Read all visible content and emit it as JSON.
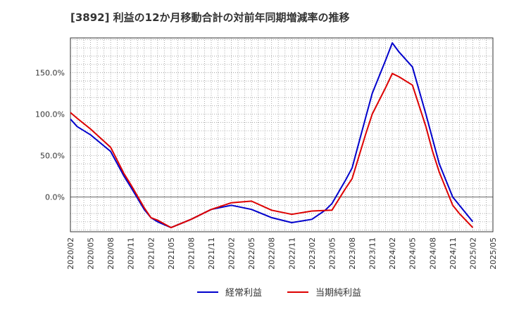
{
  "chart_data": {
    "type": "line",
    "title": "[3892]  利益の12か月移動合計の対前年同期増減率の推移",
    "ylim": [
      -42,
      192
    ],
    "yticks": [
      0,
      50,
      100,
      150
    ],
    "ytick_labels": [
      "0.0%",
      "50.0%",
      "100.0%",
      "150.0%"
    ],
    "x_labels": [
      "2020/02",
      "2020/05",
      "2020/08",
      "2020/11",
      "2021/02",
      "2021/05",
      "2021/08",
      "2021/11",
      "2022/02",
      "2022/05",
      "2022/08",
      "2022/11",
      "2023/02",
      "2023/05",
      "2023/08",
      "2023/11",
      "2024/02",
      "2024/05",
      "2024/08",
      "2024/11",
      "2025/02",
      "2025/05"
    ],
    "x_label_months": [
      0,
      3,
      6,
      9,
      12,
      15,
      18,
      21,
      24,
      27,
      30,
      33,
      36,
      39,
      42,
      45,
      48,
      51,
      54,
      57,
      60,
      63
    ],
    "x_range_months": [
      0,
      63
    ],
    "grid": true,
    "legend_position": "bottom",
    "series": [
      {
        "name": "経常利益",
        "color": "#0000cc",
        "months": [
          0,
          1,
          3,
          6,
          8,
          9,
          11,
          12,
          13,
          15,
          18,
          21,
          24,
          27,
          30,
          33,
          36,
          38,
          39,
          41,
          42,
          44,
          45,
          47,
          48,
          49,
          51,
          53,
          54,
          55,
          57,
          60
        ],
        "values": [
          94,
          85,
          75,
          55,
          25,
          12,
          -15,
          -25,
          -30,
          -37,
          -27,
          -15,
          -10,
          -15,
          -25,
          -31,
          -27,
          -16,
          -8,
          20,
          35,
          95,
          125,
          165,
          186,
          175,
          157,
          100,
          70,
          40,
          0,
          -30
        ]
      },
      {
        "name": "当期純利益",
        "color": "#dd0000",
        "months": [
          0,
          1,
          3,
          6,
          8,
          9,
          11,
          12,
          13,
          15,
          18,
          21,
          24,
          27,
          30,
          33,
          36,
          39,
          41,
          42,
          44,
          45,
          47,
          48,
          49,
          51,
          53,
          54,
          55,
          57,
          58,
          60
        ],
        "values": [
          102,
          95,
          82,
          60,
          28,
          15,
          -13,
          -25,
          -28,
          -37,
          -27,
          -15,
          -7,
          -5,
          -16,
          -21,
          -17,
          -16,
          10,
          22,
          75,
          100,
          132,
          149,
          145,
          135,
          85,
          55,
          30,
          -10,
          -20,
          -37
        ]
      }
    ]
  }
}
